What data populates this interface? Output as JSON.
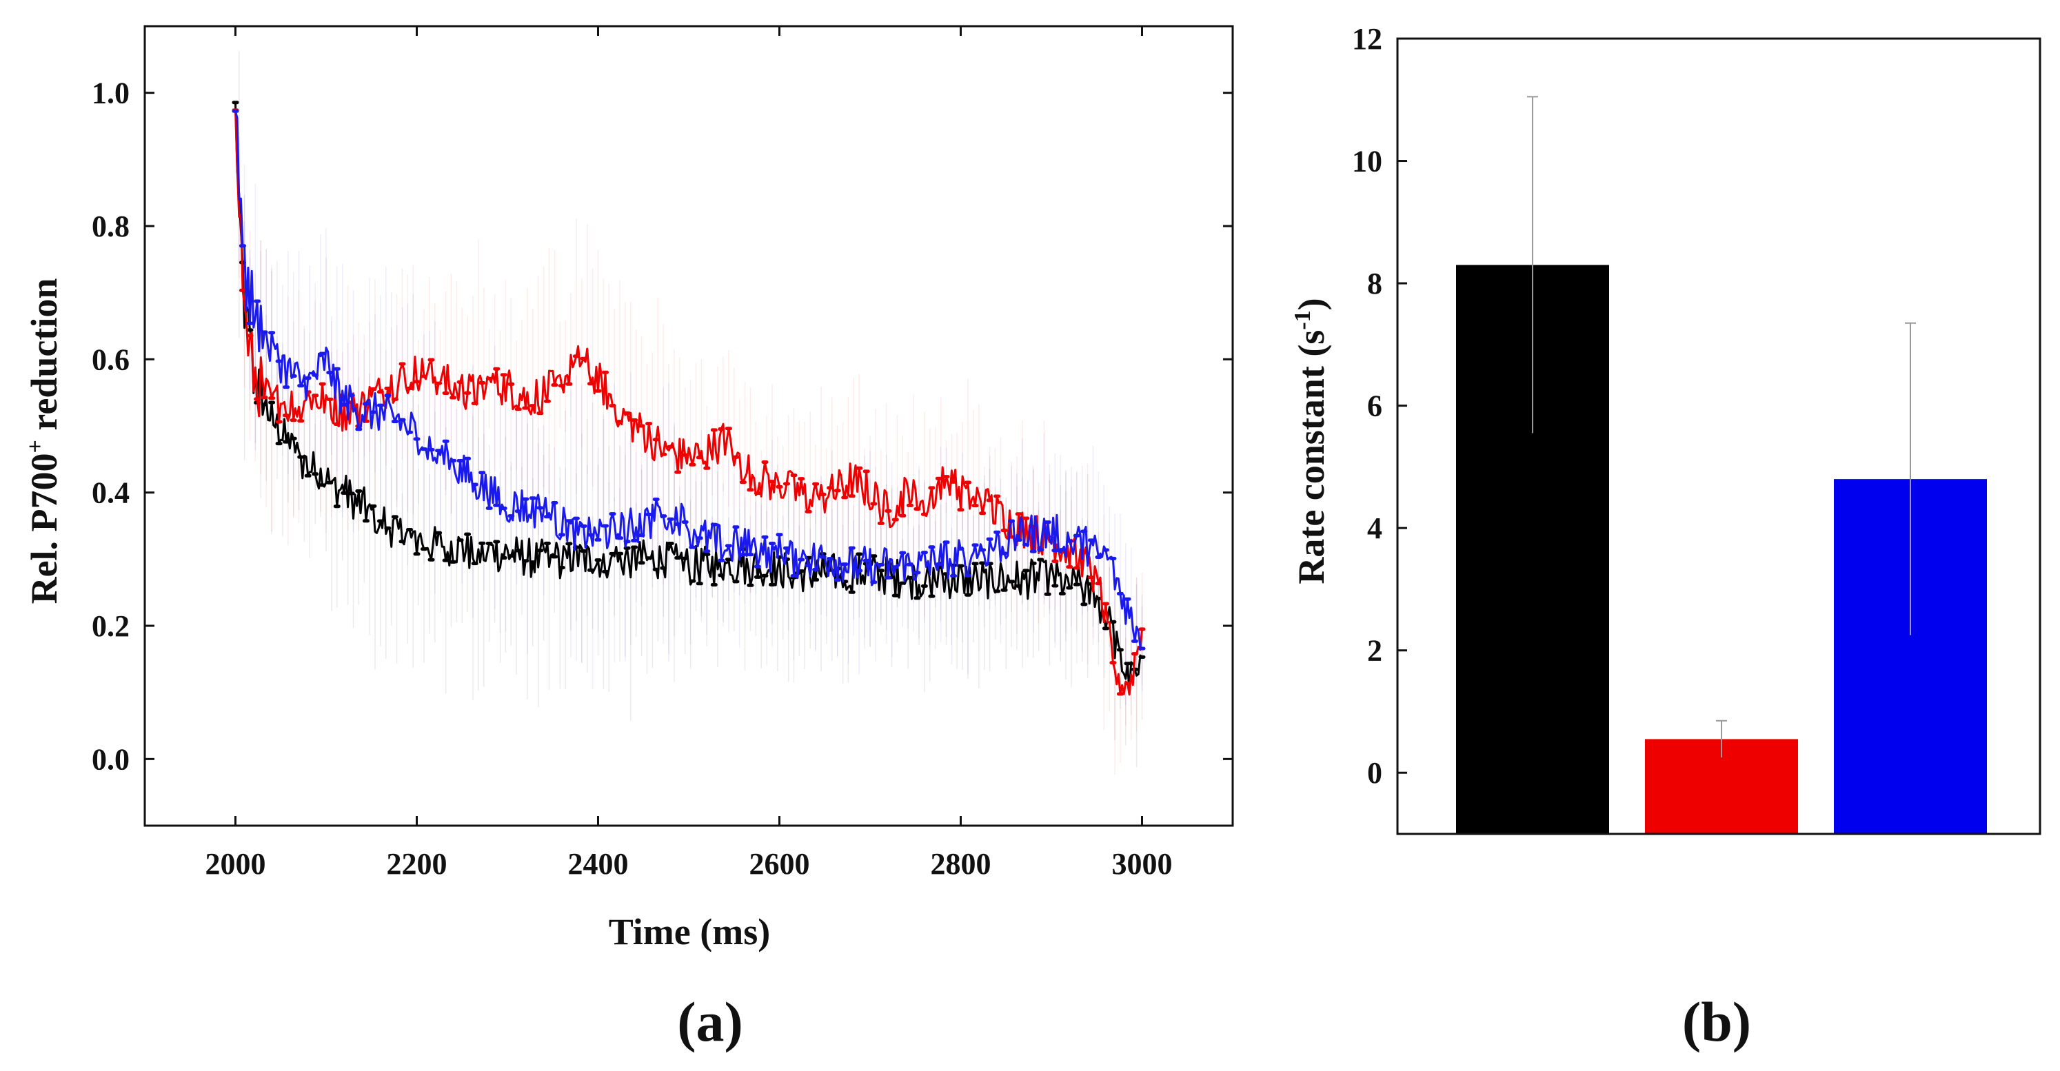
{
  "chart_data": [
    {
      "type": "line",
      "panel": "(a)",
      "xlabel": "Time (ms)",
      "ylabel": {
        "main": "Rel. P700",
        "sup": "+",
        "tail": " reduction"
      },
      "xlim": [
        1900,
        3100
      ],
      "ylim": [
        -0.1,
        1.1
      ],
      "xticks": [
        2000,
        2200,
        2400,
        2600,
        2800,
        3000
      ],
      "yticks": [
        "0.0",
        "0.2",
        "0.4",
        "0.6",
        "0.8",
        "1.0"
      ],
      "series": [
        {
          "color": "#000000",
          "x": [
            2000,
            2005,
            2010,
            2020,
            2030,
            2040,
            2050,
            2060,
            2070,
            2080,
            2090,
            2100,
            2120,
            2140,
            2160,
            2180,
            2200,
            2220,
            2240,
            2260,
            2280,
            2300,
            2330,
            2360,
            2400,
            2430,
            2460,
            2500,
            2540,
            2580,
            2620,
            2660,
            2700,
            2740,
            2780,
            2820,
            2860,
            2900,
            2930,
            2950,
            2965,
            2975,
            2985,
            2992,
            3000
          ],
          "y": [
            0.97,
            0.8,
            0.68,
            0.58,
            0.54,
            0.51,
            0.49,
            0.47,
            0.45,
            0.44,
            0.43,
            0.42,
            0.4,
            0.38,
            0.36,
            0.34,
            0.33,
            0.32,
            0.32,
            0.31,
            0.31,
            0.31,
            0.3,
            0.3,
            0.3,
            0.3,
            0.3,
            0.29,
            0.29,
            0.29,
            0.28,
            0.28,
            0.28,
            0.27,
            0.27,
            0.27,
            0.27,
            0.27,
            0.26,
            0.24,
            0.2,
            0.15,
            0.12,
            0.12,
            0.13
          ]
        },
        {
          "color": "#ee0000",
          "x": [
            2000,
            2005,
            2010,
            2020,
            2030,
            2040,
            2060,
            2080,
            2100,
            2120,
            2140,
            2160,
            2180,
            2200,
            2220,
            2240,
            2260,
            2280,
            2300,
            2320,
            2340,
            2360,
            2380,
            2400,
            2420,
            2440,
            2460,
            2480,
            2500,
            2520,
            2540,
            2560,
            2580,
            2600,
            2620,
            2640,
            2660,
            2680,
            2700,
            2720,
            2740,
            2760,
            2780,
            2800,
            2820,
            2840,
            2860,
            2880,
            2900,
            2920,
            2940,
            2955,
            2965,
            2975,
            2985,
            2992,
            3000
          ],
          "y": [
            1.0,
            0.82,
            0.66,
            0.58,
            0.55,
            0.54,
            0.53,
            0.54,
            0.54,
            0.52,
            0.53,
            0.55,
            0.57,
            0.58,
            0.57,
            0.56,
            0.55,
            0.56,
            0.56,
            0.54,
            0.55,
            0.56,
            0.6,
            0.57,
            0.53,
            0.5,
            0.48,
            0.46,
            0.45,
            0.46,
            0.48,
            0.44,
            0.42,
            0.41,
            0.4,
            0.39,
            0.4,
            0.42,
            0.4,
            0.37,
            0.4,
            0.38,
            0.42,
            0.4,
            0.39,
            0.37,
            0.35,
            0.34,
            0.33,
            0.31,
            0.29,
            0.24,
            0.17,
            0.12,
            0.1,
            0.15,
            0.2
          ]
        },
        {
          "color": "#1a1aee",
          "x": [
            2000,
            2005,
            2010,
            2020,
            2030,
            2040,
            2060,
            2080,
            2100,
            2110,
            2120,
            2140,
            2160,
            2180,
            2200,
            2220,
            2240,
            2260,
            2280,
            2300,
            2320,
            2340,
            2360,
            2380,
            2400,
            2420,
            2440,
            2460,
            2480,
            2500,
            2520,
            2540,
            2560,
            2580,
            2600,
            2620,
            2640,
            2660,
            2680,
            2700,
            2720,
            2740,
            2760,
            2780,
            2800,
            2820,
            2840,
            2860,
            2880,
            2900,
            2920,
            2940,
            2960,
            2975,
            2985,
            3000
          ],
          "y": [
            0.96,
            0.85,
            0.72,
            0.68,
            0.64,
            0.61,
            0.58,
            0.56,
            0.6,
            0.56,
            0.54,
            0.52,
            0.52,
            0.51,
            0.49,
            0.46,
            0.44,
            0.42,
            0.4,
            0.38,
            0.38,
            0.37,
            0.35,
            0.34,
            0.34,
            0.34,
            0.35,
            0.36,
            0.37,
            0.35,
            0.33,
            0.32,
            0.32,
            0.31,
            0.31,
            0.3,
            0.3,
            0.3,
            0.29,
            0.29,
            0.29,
            0.29,
            0.29,
            0.3,
            0.3,
            0.31,
            0.32,
            0.33,
            0.34,
            0.34,
            0.33,
            0.32,
            0.3,
            0.26,
            0.22,
            0.18
          ]
        }
      ]
    },
    {
      "type": "bar",
      "panel": "(b)",
      "ylabel": {
        "main": "Rate constant (s",
        "sup": "-1",
        "tail": ")"
      },
      "ylim": [
        -1,
        12
      ],
      "yticks": [
        "0",
        "2",
        "4",
        "6",
        "8",
        "10",
        "12"
      ],
      "categories": [
        "",
        "",
        ""
      ],
      "values": [
        8.3,
        0.55,
        4.8
      ],
      "errors": [
        2.75,
        0.3,
        2.55
      ],
      "colors": [
        "#000000",
        "#ee0000",
        "#0000ee"
      ]
    }
  ]
}
